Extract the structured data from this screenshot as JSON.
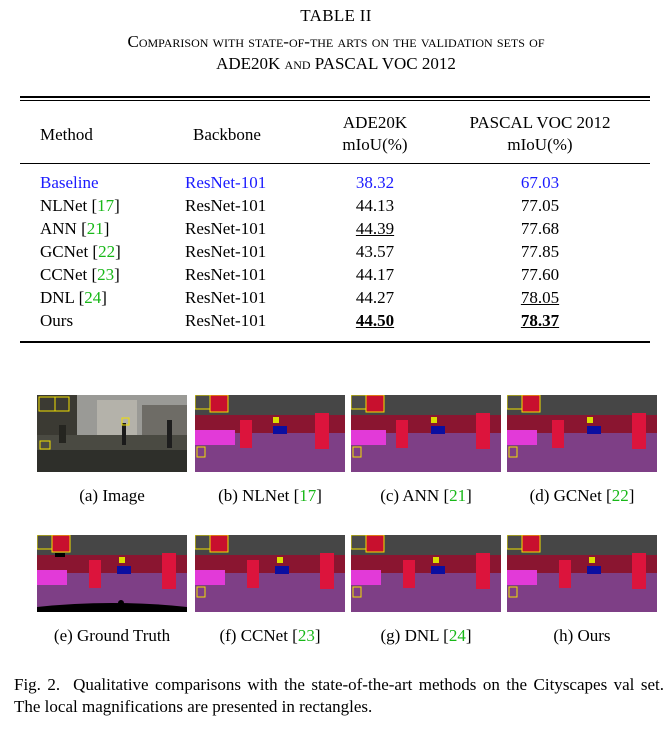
{
  "table": {
    "label": "TABLE II",
    "caption_line1": "Comparison with state-of-the arts on the validation sets of",
    "caption_line2": "ADE20K and PASCAL VOC 2012",
    "headers": {
      "method": "Method",
      "backbone": "Backbone",
      "ade_line1": "ADE20K",
      "ade_line2": "mIoU(%)",
      "voc_line1": "PASCAL VOC 2012",
      "voc_line2": "mIoU(%)"
    },
    "rows": [
      {
        "method": "Baseline",
        "ref": "",
        "backbone": "ResNet-101",
        "ade": "38.32",
        "voc": "67.03"
      },
      {
        "method": "NLNet ",
        "ref": "17",
        "backbone": "ResNet-101",
        "ade": "44.13",
        "voc": "77.05"
      },
      {
        "method": "ANN ",
        "ref": "21",
        "backbone": "ResNet-101",
        "ade": "44.39",
        "voc": "77.68"
      },
      {
        "method": "GCNet ",
        "ref": "22",
        "backbone": "ResNet-101",
        "ade": "43.57",
        "voc": "77.85"
      },
      {
        "method": "CCNet ",
        "ref": "23",
        "backbone": "ResNet-101",
        "ade": "44.17",
        "voc": "77.60"
      },
      {
        "method": "DNL ",
        "ref": "24",
        "backbone": "ResNet-101",
        "ade": "44.27",
        "voc": "78.05"
      },
      {
        "method": "Ours",
        "ref": "",
        "backbone": "ResNet-101",
        "ade": "44.50",
        "voc": "78.37"
      }
    ],
    "colors": {
      "baseline": "#1a1aff",
      "citation": "#18b818"
    }
  },
  "figure": {
    "panels": [
      {
        "prefix": "(a) Image",
        "ref": "",
        "suffix": ""
      },
      {
        "prefix": "(b) NLNet [",
        "ref": "17",
        "suffix": "]"
      },
      {
        "prefix": "(c) ANN [",
        "ref": "21",
        "suffix": "]"
      },
      {
        "prefix": "(d) GCNet [",
        "ref": "22",
        "suffix": "]"
      },
      {
        "prefix": "(e) Ground Truth",
        "ref": "",
        "suffix": ""
      },
      {
        "prefix": "(f) CCNet [",
        "ref": "23",
        "suffix": "]"
      },
      {
        "prefix": "(g) DNL [",
        "ref": "24",
        "suffix": "]"
      },
      {
        "prefix": "(h) Ours",
        "ref": "",
        "suffix": ""
      }
    ],
    "caption_label": "Fig. 2.",
    "caption_text": "Qualitative comparisons with the state-of-the-art methods on the Cityscapes val set. The local magnifications are presented in rectangles."
  }
}
